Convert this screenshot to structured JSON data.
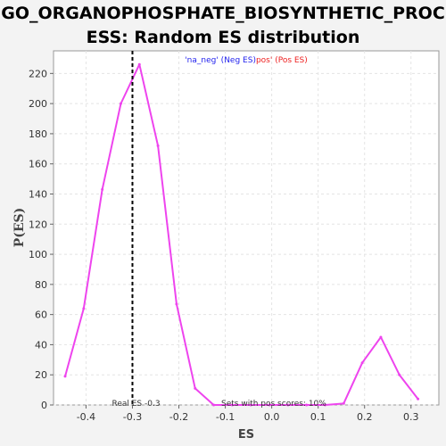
{
  "title_lines": [
    "GO_ORGANOPHOSPHATE_BIOSYNTHETIC_PROC",
    "ESS: Random ES distribution"
  ],
  "chart_data": {
    "type": "line",
    "xlabel": "ES",
    "ylabel": "P(ES)",
    "xlim": [
      -0.47,
      0.36
    ],
    "ylim": [
      0,
      235
    ],
    "xticks": [
      -0.4,
      -0.3,
      -0.2,
      -0.1,
      0.0,
      0.1,
      0.2,
      0.3
    ],
    "xtick_labels": [
      "-0.4",
      "-0.3",
      "-0.2",
      "-0.1",
      "0.0",
      "0.1",
      "0.2",
      "0.3"
    ],
    "yticks": [
      0,
      20,
      40,
      60,
      80,
      100,
      120,
      140,
      160,
      180,
      200,
      220
    ],
    "grid": true,
    "series": [
      {
        "color": "#ee44ee",
        "x": [
          -0.445,
          -0.405,
          -0.365,
          -0.325,
          -0.285,
          -0.245,
          -0.205,
          -0.165,
          -0.125,
          -0.085,
          -0.045,
          -0.005,
          0.035,
          0.075,
          0.115,
          0.155,
          0.195,
          0.235,
          0.275,
          0.315
        ],
        "y": [
          19,
          64,
          143,
          200,
          226,
          172,
          67,
          11,
          0,
          0,
          0,
          0,
          0,
          0,
          0,
          1,
          28,
          45,
          20,
          4
        ]
      }
    ],
    "real_es": {
      "x": -0.3,
      "label": "Real ES -0.3",
      "color": "#000000"
    },
    "legend": {
      "placement": "top-center",
      "neg_text": "'na_neg' (Neg ES)",
      "neg_color": "#2222ee",
      "pos_text": "pos' (Pos ES)",
      "pos_color": "#ee2222"
    },
    "annotation": "Sets with pos scores: 10%"
  }
}
